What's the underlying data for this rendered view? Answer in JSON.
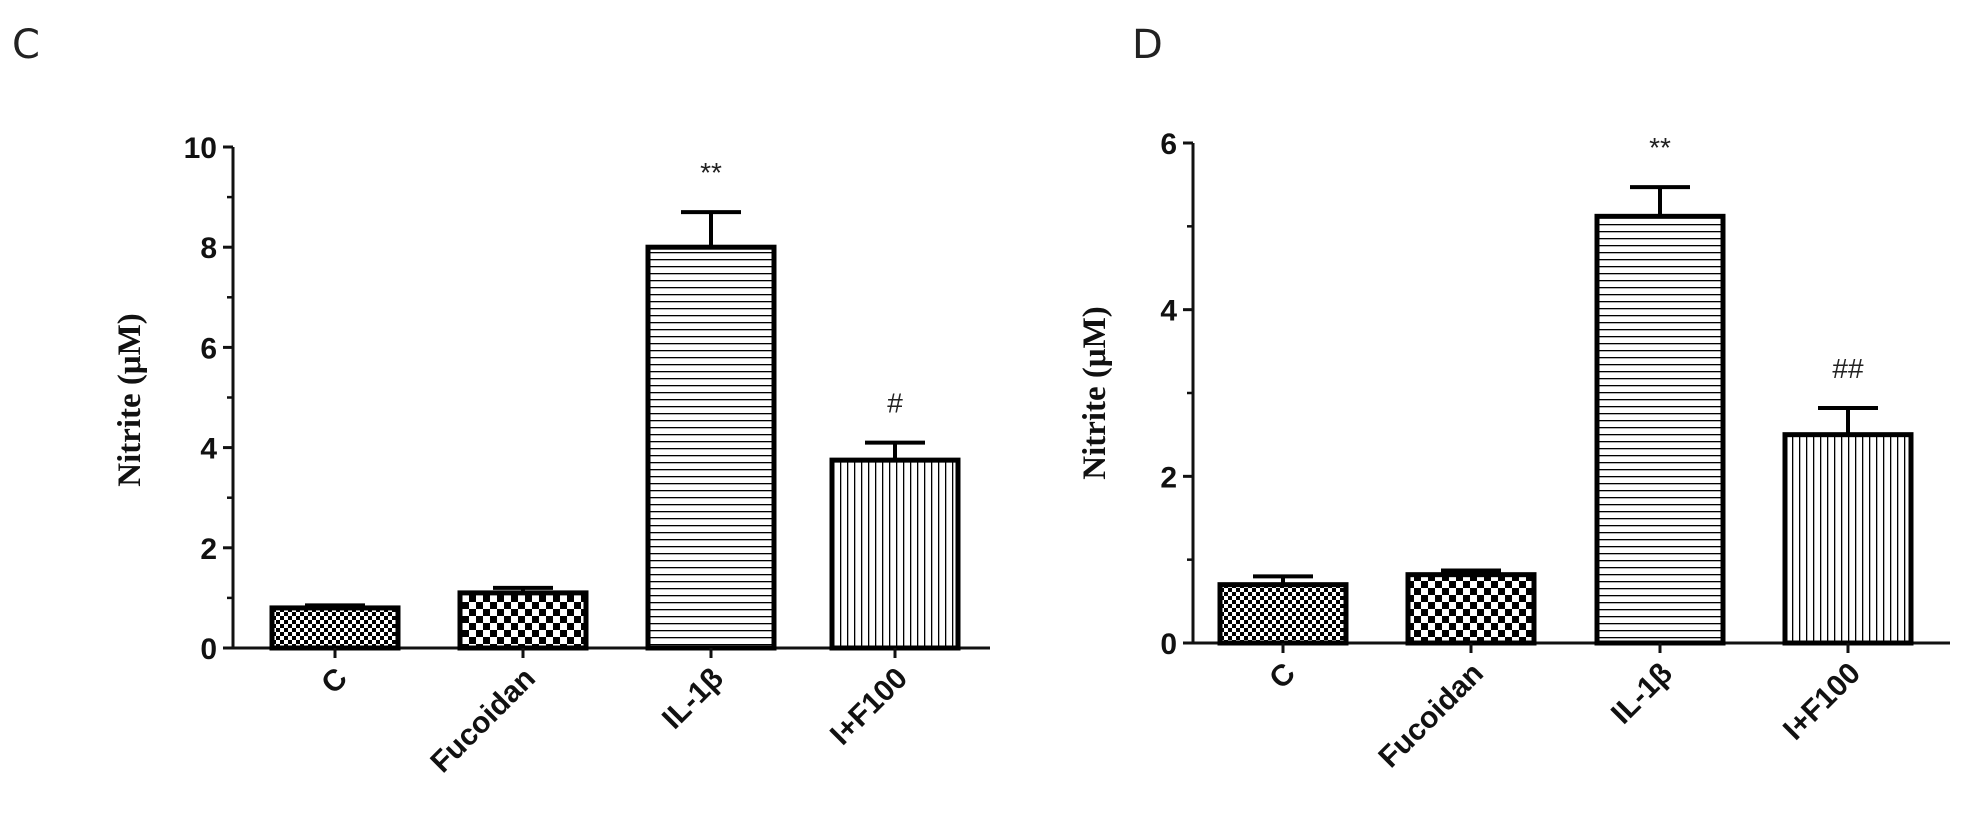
{
  "chart_data": [
    {
      "type": "bar",
      "panel": "C",
      "categories": [
        "C",
        "Fucoidan",
        "IL-1β",
        "I+F100"
      ],
      "values": [
        0.8,
        1.1,
        8.0,
        3.75
      ],
      "errors": [
        0.05,
        0.1,
        0.7,
        0.35
      ],
      "annotations": [
        "",
        "",
        "**",
        "#"
      ],
      "patterns": [
        "checker-small",
        "checker-large",
        "horizontal-lines",
        "vertical-lines"
      ],
      "ylabel": "Nitrite (μM)",
      "xlabel": "",
      "ylim": [
        0,
        10
      ],
      "yticks": [
        0,
        2,
        4,
        6,
        8,
        10
      ],
      "grid": false
    },
    {
      "type": "bar",
      "panel": "D",
      "categories": [
        "C",
        "Fucoidan",
        "IL-1β",
        "I+F100"
      ],
      "values": [
        0.7,
        0.82,
        5.12,
        2.5
      ],
      "errors": [
        0.1,
        0.05,
        0.35,
        0.32
      ],
      "annotations": [
        "",
        "",
        "**",
        "##"
      ],
      "patterns": [
        "checker-small",
        "checker-large",
        "horizontal-lines",
        "vertical-lines"
      ],
      "ylabel": "Nitrite (μM)",
      "xlabel": "",
      "ylim": [
        0,
        6
      ],
      "yticks": [
        0,
        2,
        4,
        6
      ],
      "grid": false
    }
  ],
  "style": {
    "bar_stroke": "#000000",
    "bar_fill": "#ffffff",
    "axis_color": "#111111"
  }
}
